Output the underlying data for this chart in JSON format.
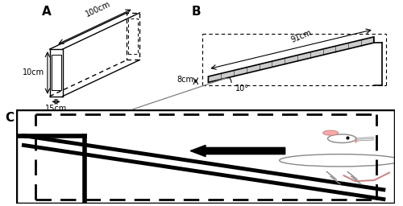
{
  "bg_color": "#ffffff",
  "label_A": "A",
  "label_B": "B",
  "label_C": "C",
  "dim_100cm": "100cm",
  "dim_10cm": "10cm",
  "dim_15cm": "15cm",
  "dim_91cm": "91cm",
  "dim_8cm": "8cm",
  "dim_angle": "10°"
}
